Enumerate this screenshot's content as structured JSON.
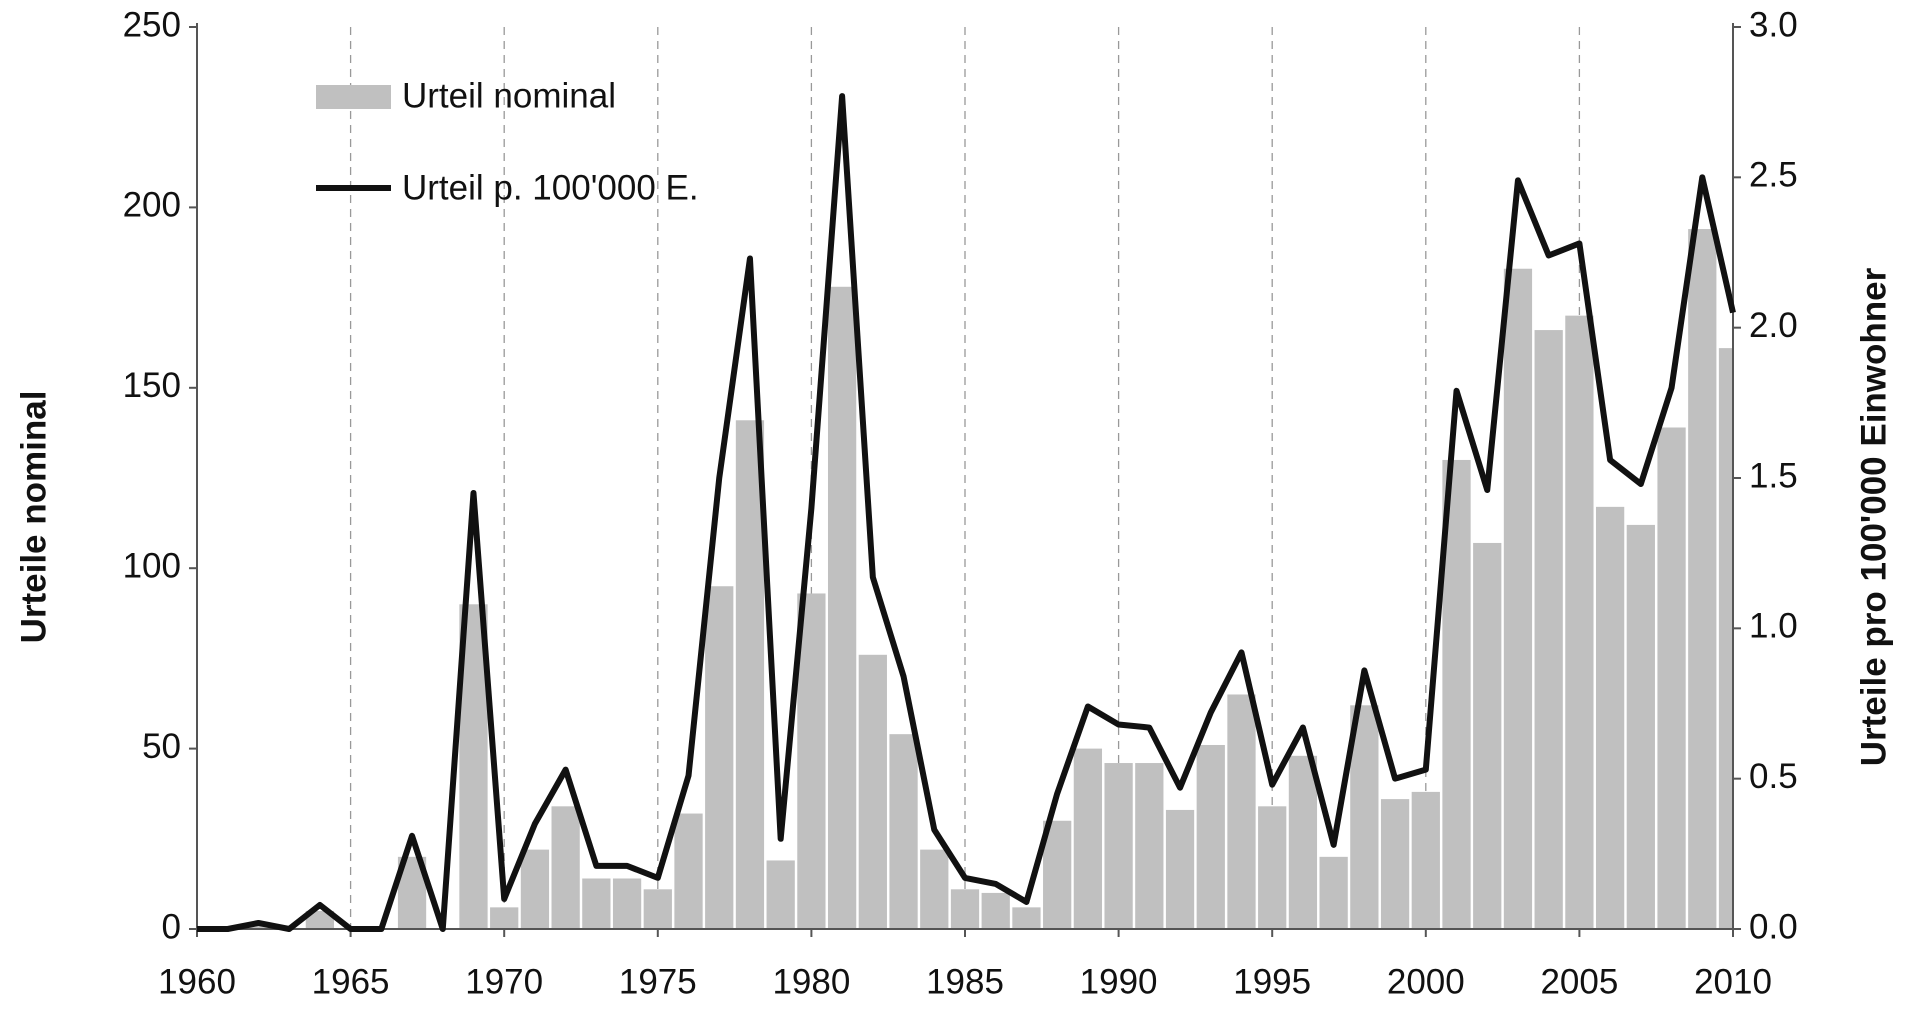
{
  "chart_data": {
    "type": "bar-line",
    "y_label": "Urteile nominal",
    "y2_label": "Urteile pro 100'000 Einwohner",
    "x": [
      1960,
      1961,
      1962,
      1963,
      1964,
      1965,
      1966,
      1967,
      1968,
      1969,
      1970,
      1971,
      1972,
      1973,
      1974,
      1975,
      1976,
      1977,
      1978,
      1979,
      1980,
      1981,
      1982,
      1983,
      1984,
      1985,
      1986,
      1987,
      1988,
      1989,
      1990,
      1991,
      1992,
      1993,
      1994,
      1995,
      1996,
      1997,
      1998,
      1999,
      2000,
      2001,
      2002,
      2003,
      2004,
      2005,
      2006,
      2007,
      2008,
      2009,
      2010
    ],
    "series": [
      {
        "name": "Urteil nominal",
        "type": "bar",
        "color": "#c0c0c0",
        "values": [
          0,
          0,
          1,
          0,
          5,
          0,
          0,
          20,
          0,
          90,
          6,
          22,
          34,
          14,
          14,
          11,
          32,
          95,
          141,
          19,
          93,
          178,
          76,
          54,
          22,
          11,
          10,
          6,
          30,
          50,
          46,
          46,
          33,
          51,
          65,
          34,
          48,
          20,
          62,
          36,
          38,
          130,
          107,
          183,
          166,
          170,
          117,
          112,
          139,
          194,
          161
        ]
      },
      {
        "name": "Urteil p. 100'000 E.",
        "type": "line",
        "axis": "y2",
        "color": "#111111",
        "values": [
          0,
          0,
          0.02,
          0,
          0.08,
          0,
          0,
          0.31,
          0,
          1.45,
          0.1,
          0.35,
          0.53,
          0.21,
          0.21,
          0.17,
          0.51,
          1.5,
          2.23,
          0.3,
          1.4,
          2.77,
          1.17,
          0.84,
          0.33,
          0.17,
          0.15,
          0.09,
          0.45,
          0.74,
          0.68,
          0.67,
          0.47,
          0.72,
          0.92,
          0.48,
          0.67,
          0.28,
          0.86,
          0.5,
          0.53,
          1.79,
          1.46,
          2.49,
          2.24,
          2.28,
          1.56,
          1.48,
          1.8,
          2.5,
          2.05
        ]
      }
    ],
    "xlim": [
      1960,
      2010
    ],
    "xticks": [
      1960,
      1965,
      1970,
      1975,
      1980,
      1985,
      1990,
      1995,
      2000,
      2005,
      2010
    ],
    "ylim": [
      0,
      250
    ],
    "yticks": [
      0,
      50,
      100,
      150,
      200,
      250
    ],
    "y2lim": [
      0,
      3
    ],
    "y2ticks": [
      {
        "value": 0,
        "label": "0.0"
      },
      {
        "value": 0.5,
        "label": "0.5"
      },
      {
        "value": 1,
        "label": "1.0"
      },
      {
        "value": 1.5,
        "label": "1.5"
      },
      {
        "value": 2,
        "label": "2.0"
      },
      {
        "value": 2.5,
        "label": "2.5"
      },
      {
        "value": 3,
        "label": "3.0"
      }
    ],
    "grid": "x-dashed",
    "legend": "upper left"
  }
}
